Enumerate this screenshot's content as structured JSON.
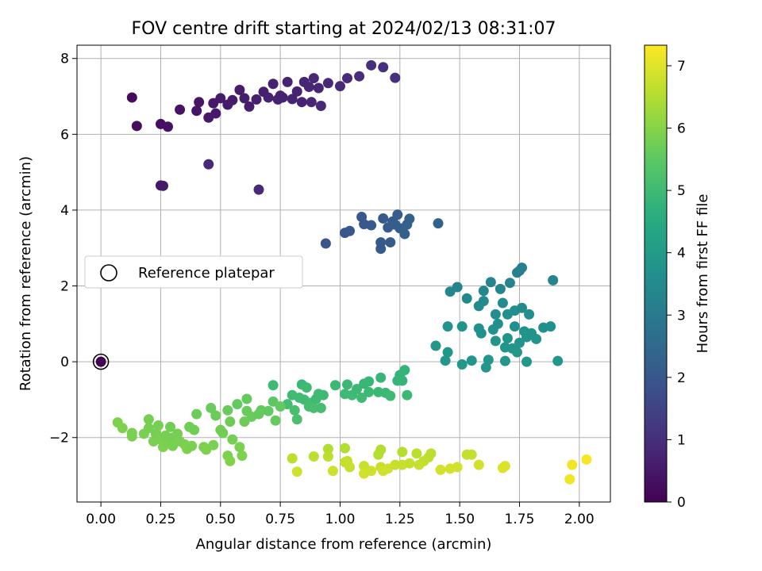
{
  "chart_data": {
    "type": "scatter",
    "title": "FOV centre drift starting at 2024/02/13 08:31:07",
    "xlabel": "Angular distance from reference (arcmin)",
    "ylabel": "Rotation from reference (arcmin)",
    "xlim": [
      -0.1,
      2.13
    ],
    "ylim": [
      -3.7,
      8.35
    ],
    "xticks": [
      "0.00",
      "0.25",
      "0.50",
      "0.75",
      "1.00",
      "1.25",
      "1.50",
      "1.75",
      "2.00"
    ],
    "yticks": [
      "−2",
      "0",
      "2",
      "4",
      "6",
      "8"
    ],
    "grid": true,
    "legend": {
      "label": "Reference platepar",
      "placement": "center-left"
    },
    "colorbar": {
      "label": "Hours from first FF file",
      "colormap": "viridis",
      "range": [
        0,
        7.33
      ],
      "ticks": [
        "0",
        "1",
        "2",
        "3",
        "4",
        "5",
        "6",
        "7"
      ]
    },
    "reference_point": {
      "x": 0,
      "y": 0,
      "hours": 0
    },
    "points": [
      [
        0.13,
        6.97,
        0.2
      ],
      [
        0.15,
        6.22,
        0.25
      ],
      [
        0.25,
        6.27,
        0.3
      ],
      [
        0.28,
        6.2,
        0.35
      ],
      [
        0.25,
        4.65,
        0.5
      ],
      [
        0.26,
        4.64,
        0.5
      ],
      [
        0.33,
        6.65,
        0.4
      ],
      [
        0.4,
        6.62,
        0.4
      ],
      [
        0.41,
        6.85,
        0.45
      ],
      [
        0.45,
        5.21,
        0.9
      ],
      [
        0.45,
        6.44,
        0.5
      ],
      [
        0.48,
        6.55,
        0.5
      ],
      [
        0.47,
        6.82,
        0.5
      ],
      [
        0.5,
        6.95,
        0.55
      ],
      [
        0.53,
        6.78,
        0.55
      ],
      [
        0.58,
        7.17,
        0.6
      ],
      [
        0.6,
        6.95,
        0.6
      ],
      [
        0.62,
        6.73,
        0.6
      ],
      [
        0.65,
        6.92,
        0.65
      ],
      [
        0.66,
        4.54,
        0.9
      ],
      [
        0.68,
        7.12,
        0.65
      ],
      [
        0.7,
        6.97,
        0.7
      ],
      [
        0.72,
        7.33,
        0.7
      ],
      [
        0.74,
        6.92,
        0.7
      ],
      [
        0.76,
        6.97,
        0.7
      ],
      [
        0.78,
        7.38,
        0.75
      ],
      [
        0.8,
        6.93,
        0.75
      ],
      [
        0.82,
        7.13,
        0.75
      ],
      [
        0.84,
        6.85,
        0.75
      ],
      [
        0.85,
        7.38,
        0.8
      ],
      [
        0.87,
        7.25,
        0.8
      ],
      [
        0.88,
        6.85,
        0.8
      ],
      [
        0.89,
        7.48,
        0.8
      ],
      [
        0.91,
        7.22,
        0.8
      ],
      [
        0.92,
        6.75,
        0.85
      ],
      [
        0.95,
        7.35,
        0.85
      ],
      [
        1.0,
        7.27,
        0.9
      ],
      [
        1.03,
        7.48,
        0.9
      ],
      [
        1.08,
        7.53,
        0.95
      ],
      [
        1.13,
        7.82,
        1.0
      ],
      [
        1.18,
        7.77,
        1.0
      ],
      [
        1.23,
        7.49,
        1.0
      ],
      [
        0.75,
        7.02,
        0.7
      ],
      [
        0.55,
        6.9,
        0.55
      ],
      [
        0.94,
        3.12,
        1.95
      ],
      [
        1.02,
        3.4,
        1.95
      ],
      [
        1.04,
        3.45,
        2.0
      ],
      [
        1.09,
        3.82,
        2.0
      ],
      [
        1.1,
        3.63,
        2.05
      ],
      [
        1.13,
        3.6,
        2.05
      ],
      [
        1.17,
        2.98,
        2.1
      ],
      [
        1.17,
        3.15,
        2.1
      ],
      [
        1.18,
        3.78,
        2.1
      ],
      [
        1.2,
        3.54,
        2.15
      ],
      [
        1.21,
        3.15,
        2.15
      ],
      [
        1.22,
        3.7,
        2.15
      ],
      [
        1.23,
        3.62,
        2.2
      ],
      [
        1.24,
        3.88,
        2.2
      ],
      [
        1.25,
        3.52,
        2.2
      ],
      [
        1.27,
        3.37,
        2.25
      ],
      [
        1.28,
        3.62,
        2.25
      ],
      [
        1.29,
        3.77,
        2.25
      ],
      [
        1.41,
        3.65,
        2.3
      ],
      [
        1.4,
        0.42,
        3.9
      ],
      [
        1.44,
        0.03,
        3.9
      ],
      [
        1.45,
        0.93,
        3.8
      ],
      [
        1.45,
        0.25,
        3.85
      ],
      [
        1.46,
        1.85,
        3.4
      ],
      [
        1.49,
        1.97,
        3.3
      ],
      [
        1.51,
        0.93,
        3.75
      ],
      [
        1.51,
        -0.07,
        3.9
      ],
      [
        1.53,
        1.67,
        3.45
      ],
      [
        1.55,
        0.03,
        3.85
      ],
      [
        1.58,
        1.47,
        3.5
      ],
      [
        1.58,
        0.88,
        3.7
      ],
      [
        1.59,
        0.75,
        3.7
      ],
      [
        1.6,
        1.87,
        3.4
      ],
      [
        1.6,
        1.6,
        3.45
      ],
      [
        1.61,
        -0.15,
        3.9
      ],
      [
        1.62,
        0.05,
        3.85
      ],
      [
        1.63,
        2.1,
        3.3
      ],
      [
        1.64,
        0.85,
        3.75
      ],
      [
        1.65,
        1.25,
        3.6
      ],
      [
        1.65,
        0.55,
        3.8
      ],
      [
        1.66,
        1.0,
        3.7
      ],
      [
        1.67,
        1.92,
        3.35
      ],
      [
        1.68,
        1.55,
        3.5
      ],
      [
        1.69,
        0.38,
        3.85
      ],
      [
        1.69,
        0.02,
        3.9
      ],
      [
        1.7,
        0.62,
        3.8
      ],
      [
        1.7,
        1.25,
        3.6
      ],
      [
        1.71,
        2.08,
        3.3
      ],
      [
        1.72,
        0.35,
        3.85
      ],
      [
        1.73,
        0.93,
        3.7
      ],
      [
        1.73,
        1.35,
        3.6
      ],
      [
        1.74,
        2.35,
        3.2
      ],
      [
        1.74,
        0.25,
        3.9
      ],
      [
        1.75,
        2.4,
        3.2
      ],
      [
        1.75,
        0.5,
        3.8
      ],
      [
        1.76,
        2.48,
        3.2
      ],
      [
        1.76,
        1.42,
        3.55
      ],
      [
        1.77,
        0.8,
        3.75
      ],
      [
        1.78,
        0.65,
        3.8
      ],
      [
        1.78,
        0.0,
        3.9
      ],
      [
        1.79,
        1.25,
        3.6
      ],
      [
        1.8,
        0.75,
        3.75
      ],
      [
        1.82,
        0.6,
        3.8
      ],
      [
        1.85,
        0.9,
        3.7
      ],
      [
        1.88,
        0.93,
        3.7
      ],
      [
        1.89,
        2.15,
        3.3
      ],
      [
        1.91,
        0.02,
        3.9
      ],
      [
        0.72,
        -0.62,
        5.0
      ],
      [
        0.78,
        -1.12,
        5.1
      ],
      [
        0.8,
        -0.88,
        5.05
      ],
      [
        0.81,
        -1.28,
        5.15
      ],
      [
        0.82,
        -1.52,
        5.2
      ],
      [
        0.83,
        -0.95,
        5.05
      ],
      [
        0.84,
        -0.6,
        4.95
      ],
      [
        0.85,
        -1.0,
        5.05
      ],
      [
        0.86,
        -0.68,
        5.0
      ],
      [
        0.87,
        -1.18,
        5.1
      ],
      [
        0.88,
        -1.08,
        5.1
      ],
      [
        0.89,
        -1.22,
        5.15
      ],
      [
        0.9,
        -0.98,
        5.05
      ],
      [
        0.91,
        -0.85,
        5.0
      ],
      [
        0.92,
        -1.22,
        5.1
      ],
      [
        0.93,
        -0.88,
        5.0
      ],
      [
        0.98,
        -0.62,
        4.95
      ],
      [
        1.02,
        -0.85,
        5.0
      ],
      [
        1.03,
        -0.6,
        4.95
      ],
      [
        1.05,
        -0.88,
        5.0
      ],
      [
        1.07,
        -0.72,
        4.95
      ],
      [
        1.09,
        -0.95,
        5.0
      ],
      [
        1.1,
        -0.58,
        4.9
      ],
      [
        1.12,
        -0.52,
        4.9
      ],
      [
        1.12,
        -0.8,
        4.95
      ],
      [
        1.16,
        -0.8,
        4.95
      ],
      [
        1.17,
        -0.42,
        4.85
      ],
      [
        1.19,
        -0.82,
        4.95
      ],
      [
        1.21,
        -0.9,
        5.0
      ],
      [
        1.24,
        -0.5,
        4.85
      ],
      [
        1.25,
        -0.35,
        4.8
      ],
      [
        1.26,
        -0.5,
        4.85
      ],
      [
        1.27,
        -0.22,
        4.8
      ],
      [
        1.28,
        -0.88,
        4.95
      ],
      [
        0.07,
        -1.6,
        5.9
      ],
      [
        0.09,
        -1.75,
        5.9
      ],
      [
        0.13,
        -1.88,
        5.85
      ],
      [
        0.13,
        -1.97,
        5.85
      ],
      [
        0.18,
        -1.9,
        5.85
      ],
      [
        0.2,
        -1.75,
        5.8
      ],
      [
        0.2,
        -1.52,
        5.8
      ],
      [
        0.22,
        -2.1,
        5.85
      ],
      [
        0.23,
        -1.9,
        5.8
      ],
      [
        0.24,
        -1.68,
        5.8
      ],
      [
        0.25,
        -2.05,
        5.85
      ],
      [
        0.26,
        -2.25,
        5.9
      ],
      [
        0.27,
        -1.95,
        5.8
      ],
      [
        0.28,
        -2.15,
        5.85
      ],
      [
        0.29,
        -1.72,
        5.75
      ],
      [
        0.3,
        -2.0,
        5.8
      ],
      [
        0.3,
        -2.22,
        5.85
      ],
      [
        0.32,
        -1.9,
        5.8
      ],
      [
        0.33,
        -2.1,
        5.85
      ],
      [
        0.35,
        -2.18,
        5.85
      ],
      [
        0.36,
        -2.3,
        5.9
      ],
      [
        0.37,
        -1.72,
        5.75
      ],
      [
        0.38,
        -2.22,
        5.85
      ],
      [
        0.39,
        -1.8,
        5.75
      ],
      [
        0.4,
        -1.38,
        5.7
      ],
      [
        0.43,
        -2.25,
        5.85
      ],
      [
        0.44,
        -2.32,
        5.9
      ],
      [
        0.46,
        -1.22,
        5.65
      ],
      [
        0.47,
        -2.2,
        5.85
      ],
      [
        0.48,
        -1.42,
        5.7
      ],
      [
        0.5,
        -1.8,
        5.75
      ],
      [
        0.51,
        -1.88,
        5.75
      ],
      [
        0.53,
        -1.28,
        5.65
      ],
      [
        0.53,
        -2.48,
        5.9
      ],
      [
        0.54,
        -1.58,
        5.7
      ],
      [
        0.54,
        -2.62,
        5.95
      ],
      [
        0.55,
        -2.05,
        5.8
      ],
      [
        0.57,
        -1.12,
        5.6
      ],
      [
        0.58,
        -2.25,
        5.85
      ],
      [
        0.59,
        -2.48,
        5.9
      ],
      [
        0.6,
        -1.58,
        5.7
      ],
      [
        0.61,
        -0.98,
        5.6
      ],
      [
        0.61,
        -1.3,
        5.65
      ],
      [
        0.63,
        -1.45,
        5.65
      ],
      [
        0.66,
        -1.38,
        5.6
      ],
      [
        0.67,
        -1.28,
        5.6
      ],
      [
        0.72,
        -1.05,
        5.5
      ],
      [
        0.73,
        -1.55,
        5.6
      ],
      [
        0.75,
        -1.18,
        5.55
      ],
      [
        0.7,
        -1.3,
        5.55
      ],
      [
        0.8,
        -2.55,
        6.6
      ],
      [
        0.82,
        -2.9,
        6.8
      ],
      [
        0.89,
        -2.5,
        6.6
      ],
      [
        0.95,
        -2.3,
        6.5
      ],
      [
        0.95,
        -2.5,
        6.6
      ],
      [
        0.97,
        -2.88,
        6.8
      ],
      [
        1.02,
        -2.28,
        6.5
      ],
      [
        1.02,
        -2.65,
        6.7
      ],
      [
        1.03,
        -2.62,
        6.7
      ],
      [
        1.04,
        -2.78,
        6.75
      ],
      [
        1.1,
        -2.75,
        6.75
      ],
      [
        1.1,
        -2.95,
        6.85
      ],
      [
        1.13,
        -2.88,
        6.8
      ],
      [
        1.16,
        -2.45,
        6.55
      ],
      [
        1.17,
        -2.32,
        6.5
      ],
      [
        1.17,
        -2.78,
        6.75
      ],
      [
        1.18,
        -2.88,
        6.8
      ],
      [
        1.2,
        -2.82,
        6.8
      ],
      [
        1.23,
        -2.72,
        6.75
      ],
      [
        1.26,
        -2.38,
        6.55
      ],
      [
        1.26,
        -2.72,
        6.75
      ],
      [
        1.29,
        -2.68,
        6.7
      ],
      [
        1.32,
        -2.42,
        6.6
      ],
      [
        1.33,
        -2.72,
        6.75
      ],
      [
        1.35,
        -2.62,
        6.7
      ],
      [
        1.37,
        -2.52,
        6.65
      ],
      [
        1.38,
        -2.42,
        6.6
      ],
      [
        1.42,
        -2.85,
        6.85
      ],
      [
        1.46,
        -2.82,
        6.85
      ],
      [
        1.49,
        -2.78,
        6.85
      ],
      [
        1.53,
        -2.45,
        6.7
      ],
      [
        1.55,
        -2.45,
        6.7
      ],
      [
        1.58,
        -2.72,
        6.85
      ],
      [
        1.68,
        -2.8,
        6.95
      ],
      [
        1.69,
        -2.75,
        6.95
      ],
      [
        1.96,
        -3.1,
        7.2
      ],
      [
        1.97,
        -2.72,
        7.2
      ],
      [
        2.03,
        -2.58,
        7.25
      ]
    ]
  }
}
